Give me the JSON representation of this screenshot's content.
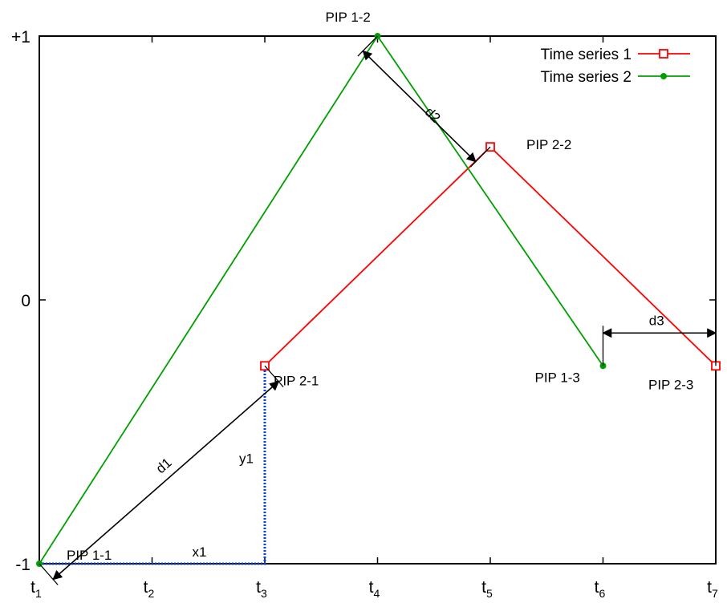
{
  "chart_data": {
    "type": "line",
    "title": "",
    "xlabel": "",
    "ylabel": "",
    "x_ticks": [
      {
        "base": "t",
        "sub": "1",
        "x": 1
      },
      {
        "base": "t",
        "sub": "2",
        "x": 2
      },
      {
        "base": "t",
        "sub": "3",
        "x": 3
      },
      {
        "base": "t",
        "sub": "4",
        "x": 4
      },
      {
        "base": "t",
        "sub": "5",
        "x": 5
      },
      {
        "base": "t",
        "sub": "6",
        "x": 6
      },
      {
        "base": "t",
        "sub": "7",
        "x": 7
      }
    ],
    "y_ticks": [
      {
        "label": "+1",
        "y": 1
      },
      {
        "label": "0",
        "y": 0
      },
      {
        "label": "-1",
        "y": -1
      }
    ],
    "xlim": [
      1,
      7
    ],
    "ylim": [
      -1,
      1
    ],
    "grid": false,
    "legend_position": "top-right",
    "series": [
      {
        "name": "Time series 1",
        "color": "#ff0000",
        "marker": "square",
        "x": [
          3,
          5,
          7
        ],
        "y": [
          -0.25,
          0.58,
          -0.25
        ]
      },
      {
        "name": "Time series 2",
        "color": "#00a000",
        "marker": "circle",
        "x": [
          1,
          4,
          6
        ],
        "y": [
          -1,
          1,
          -0.25
        ]
      }
    ],
    "guides": {
      "color": "#0040e0",
      "from": {
        "x": 1,
        "y": -1
      },
      "corner": {
        "x": 3,
        "y": -1
      },
      "to": {
        "x": 3,
        "y": -0.25
      }
    },
    "annotations": [
      {
        "text": "PIP 1-1",
        "anchor": {
          "x": 1,
          "y": -1
        }
      },
      {
        "text": "PIP 1-2",
        "anchor": {
          "x": 4,
          "y": 1
        }
      },
      {
        "text": "PIP 1-3",
        "anchor": {
          "x": 6,
          "y": -0.25
        }
      },
      {
        "text": "PIP 2-1",
        "anchor": {
          "x": 3,
          "y": -0.25
        }
      },
      {
        "text": "PIP 2-2",
        "anchor": {
          "x": 5,
          "y": 0.58
        }
      },
      {
        "text": "PIP 2-3",
        "anchor": {
          "x": 7,
          "y": -0.25
        }
      },
      {
        "text": "x1"
      },
      {
        "text": "y1"
      },
      {
        "text": "d1"
      },
      {
        "text": "d2"
      },
      {
        "text": "d3"
      }
    ]
  }
}
